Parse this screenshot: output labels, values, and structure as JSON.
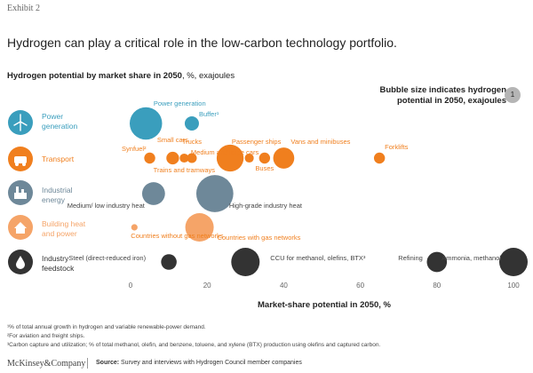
{
  "header": {
    "exhibit": "Exhibit 2",
    "title": "Hydrogen can play a critical role in the low-carbon technology portfolio.",
    "subtitle_bold": "Hydrogen potential by market share in 2050",
    "subtitle_rest": ", %, exajoules",
    "bubble_note": "Bubble size indicates hydrogen potential in 2050, exajoules",
    "bubble_key_value": "1"
  },
  "rows": [
    {
      "label": "Power generation",
      "color": "#3a9ebd",
      "icon": "wind-turbine-icon"
    },
    {
      "label": "Transport",
      "color": "#f07f1e",
      "icon": "car-icon"
    },
    {
      "label": "Industrial energy",
      "color": "#6e8899",
      "icon": "factory-icon"
    },
    {
      "label": "Building heat and power",
      "color": "#f5a468",
      "icon": "house-icon"
    },
    {
      "label": "Industry feedstock",
      "color": "#333333",
      "icon": "oil-drop-icon"
    }
  ],
  "chart_data": {
    "type": "scatter",
    "xlabel": "Market-share potential in 2050, %",
    "xlim": [
      0,
      100
    ],
    "xticks": [
      0,
      20,
      40,
      60,
      80,
      100
    ],
    "points": [
      {
        "label": "Power generation",
        "row": 0,
        "x": 4,
        "size": 1.3
      },
      {
        "label": "Buffer¹",
        "row": 0,
        "x": 16,
        "size": 0.25
      },
      {
        "label": "Synfuel²",
        "row": 1,
        "x": 5,
        "size": 0.15
      },
      {
        "label": "Small cars",
        "row": 1,
        "x": 11,
        "size": 0.2
      },
      {
        "label": "Trucks",
        "row": 1,
        "x": 16,
        "size": 0.12
      },
      {
        "label": "Trains and tramways",
        "row": 1,
        "x": 14,
        "size": 0.1
      },
      {
        "label": "Medium and large cars",
        "row": 1,
        "x": 26,
        "size": 0.9
      },
      {
        "label": "Passenger ships",
        "row": 1,
        "x": 31,
        "size": 0.1
      },
      {
        "label": "Buses",
        "row": 1,
        "x": 35,
        "size": 0.15
      },
      {
        "label": "Vans and minibuses",
        "row": 1,
        "x": 40,
        "size": 0.55
      },
      {
        "label": "Forklifts",
        "row": 1,
        "x": 65,
        "size": 0.15
      },
      {
        "label": "Medium/ low industry heat",
        "row": 2,
        "x": 6,
        "size": 0.65
      },
      {
        "label": "High-grade industry heat",
        "row": 2,
        "x": 22,
        "size": 1.7
      },
      {
        "label": "Countries without gas networks",
        "row": 3,
        "x": 1,
        "size": 0.05
      },
      {
        "label": "Countries with gas networks",
        "row": 3,
        "x": 18,
        "size": 1.0
      },
      {
        "label": "Steel (direct-reduced iron)",
        "row": 4,
        "x": 10,
        "size": 0.3
      },
      {
        "label": "CCU for methanol, olefins, BTX³",
        "row": 4,
        "x": 30,
        "size": 1.0
      },
      {
        "label": "Refining",
        "row": 4,
        "x": 80,
        "size": 0.5
      },
      {
        "label": "Ammonia, methanol",
        "row": 4,
        "x": 100,
        "size": 1.0
      }
    ]
  },
  "footnotes": [
    "¹% of total annual growth in hydrogen and variable renewable-power demand.",
    "²For aviation and freight ships.",
    "³Carbon capture and utilization; % of total methanol, olefin, and benzene, toluene, and xylene (BTX) production using olefins and captured carbon."
  ],
  "footer": {
    "brand": "McKinsey&Company",
    "source_label": "Source:",
    "source_text": " Survey and interviews with Hydrogen Council member companies"
  }
}
